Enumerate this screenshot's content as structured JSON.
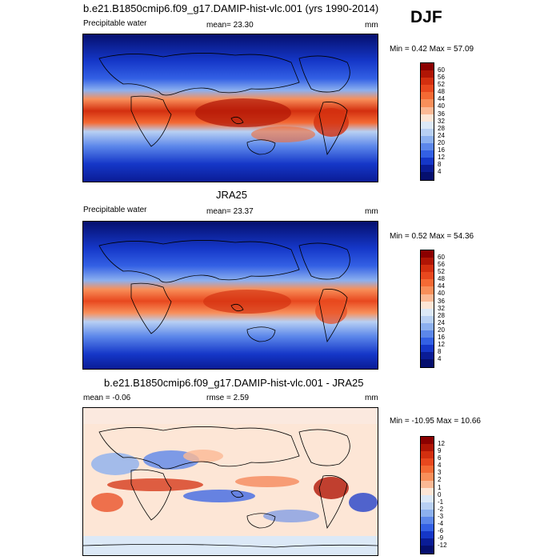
{
  "season": "DJF",
  "panels": [
    {
      "title": "b.e21.B1850cmip6.f09_g17.DAMIP-hist-vlc.001 (yrs 1990-2014)",
      "left_label": "Precipitable water",
      "mean_text": "mean=  23.30",
      "units": "mm",
      "minmax": "Min =   0.42 Max =   57.09",
      "colorbar_labels": [
        "60",
        "56",
        "52",
        "48",
        "44",
        "40",
        "36",
        "32",
        "28",
        "24",
        "20",
        "16",
        "12",
        "8",
        "4"
      ]
    },
    {
      "title": "JRA25",
      "left_label": "Precipitable water",
      "mean_text": "mean=  23.37",
      "units": "mm",
      "minmax": "Min =   0.52 Max =   54.36",
      "colorbar_labels": [
        "60",
        "56",
        "52",
        "48",
        "44",
        "40",
        "36",
        "32",
        "28",
        "24",
        "20",
        "16",
        "12",
        "8",
        "4"
      ]
    },
    {
      "title": "b.e21.B1850cmip6.f09_g17.DAMIP-hist-vlc.001 - JRA25",
      "left_label": "mean =  -0.06",
      "mean_text": "rmse =   2.59",
      "units": "mm",
      "minmax": "Min = -10.95 Max =   10.66",
      "colorbar_labels": [
        "12",
        "9",
        "6",
        "4",
        "3",
        "2",
        "1",
        "0",
        "-1",
        "-2",
        "-3",
        "-4",
        "-6",
        "-9",
        "-12"
      ]
    }
  ],
  "colors": {
    "abs_scale": [
      "#8b0000",
      "#b01505",
      "#d32f0f",
      "#e8481e",
      "#f46a34",
      "#f88f5a",
      "#fbb995",
      "#fde6d6",
      "#dce9f7",
      "#b8d0f3",
      "#8cb0ef",
      "#5c87ea",
      "#3360e4",
      "#1537c8",
      "#0a1c96",
      "#050f6e"
    ],
    "diff_scale": [
      "#8b0000",
      "#b01505",
      "#d32f0f",
      "#e8481e",
      "#f46a34",
      "#f88f5a",
      "#fbb995",
      "#fde6d6",
      "#dce9f7",
      "#b8d0f3",
      "#8cb0ef",
      "#5c87ea",
      "#3360e4",
      "#1537c8",
      "#0a1c96",
      "#050f6e"
    ]
  }
}
